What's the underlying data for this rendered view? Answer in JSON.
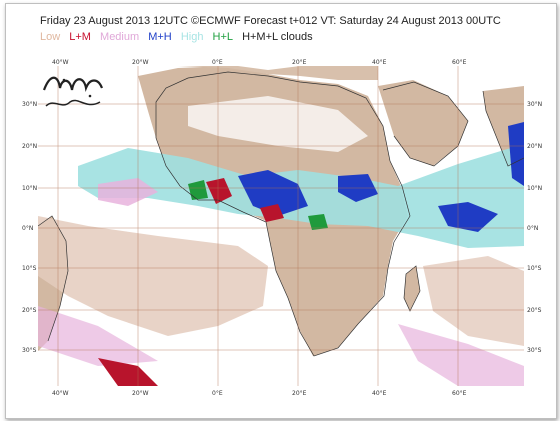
{
  "header": {
    "title": "Friday 23 August 2013 12UTC ©ECMWF Forecast t+012 VT: Saturday 24 August 2013 00UTC"
  },
  "legend": {
    "items": [
      {
        "label": "Low",
        "color": "#e0b8a0"
      },
      {
        "label": "L+M",
        "color": "#c8102e"
      },
      {
        "label": "Medium",
        "color": "#e0a8d8"
      },
      {
        "label": "M+H",
        "color": "#2040c8"
      },
      {
        "label": "High",
        "color": "#a8e4e4"
      },
      {
        "label": "H+L",
        "color": "#20a040"
      },
      {
        "label": "H+M+L clouds",
        "color": "#222222"
      }
    ]
  },
  "map": {
    "lon_labels": [
      "40°W",
      "20°W",
      "0°E",
      "20°E",
      "40°E",
      "60°E"
    ],
    "lat_labels": [
      "30°N",
      "20°N",
      "10°N",
      "0°N",
      "10°S",
      "20°S",
      "30°S"
    ],
    "land_color": "#d2b8a2",
    "grid_color": "#b07050",
    "coast_color": "#333333"
  }
}
